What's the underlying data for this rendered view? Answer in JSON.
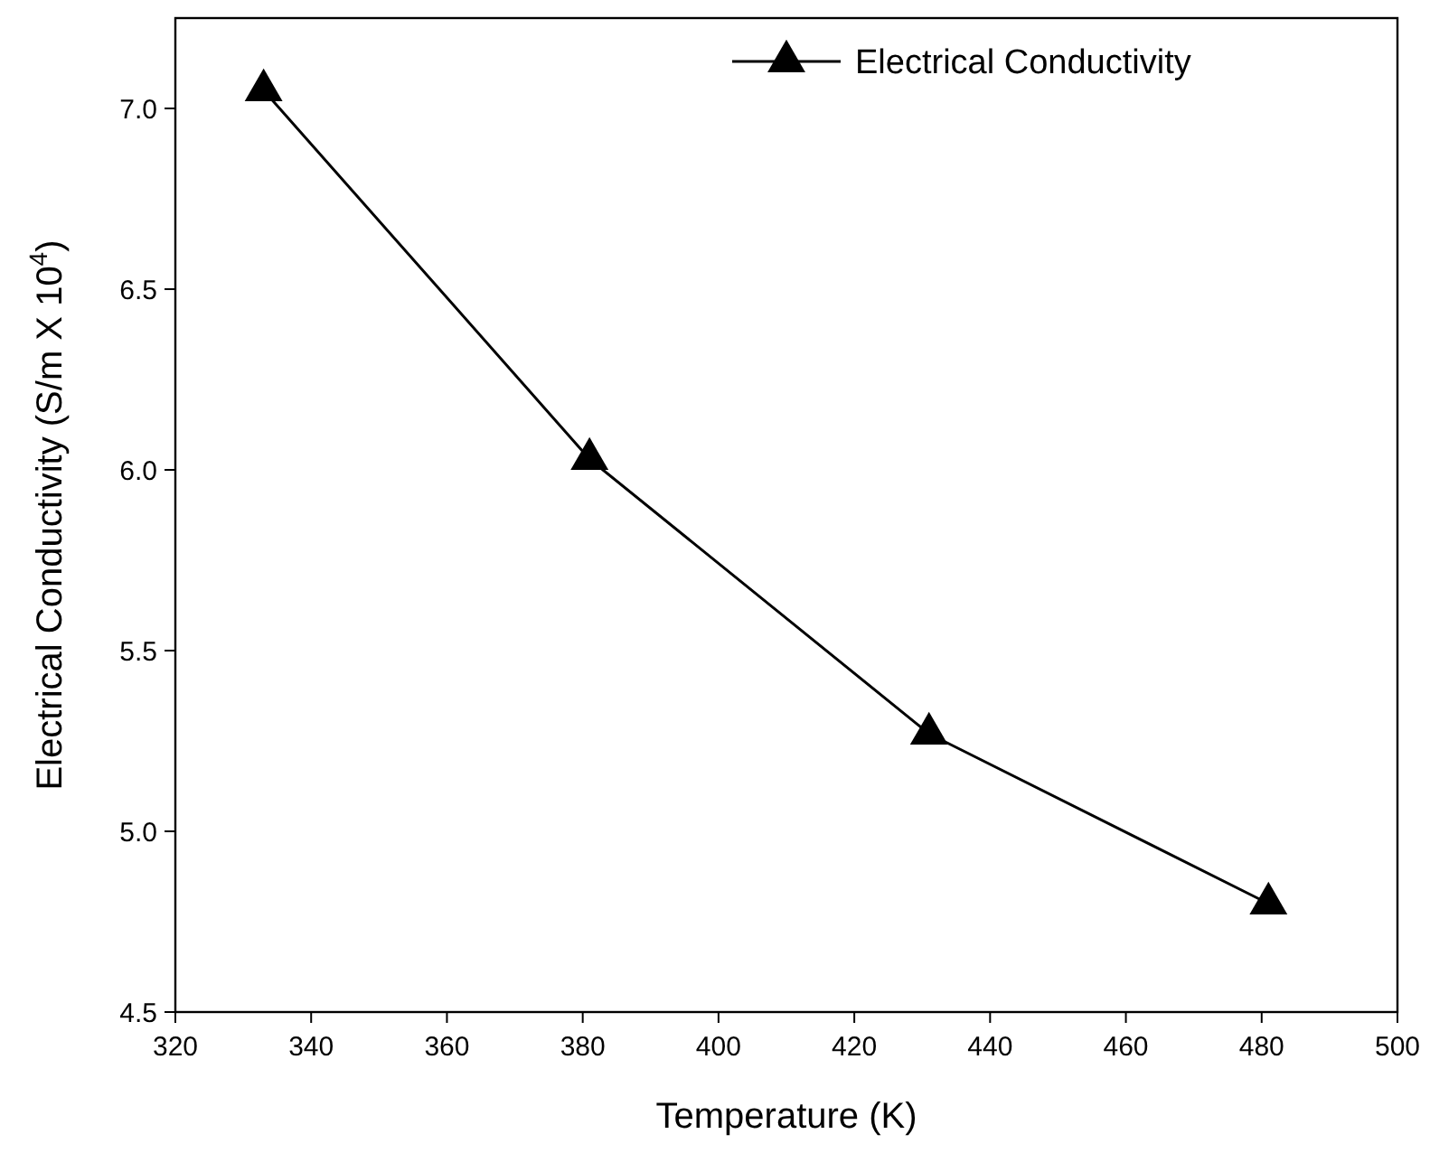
{
  "chart_data": {
    "type": "line",
    "xlabel": "Temperature (K)",
    "ylabel": "Electrical Conductivity (S/m X 10$^{4}$)",
    "x": [
      333,
      381,
      431,
      481
    ],
    "series": [
      {
        "name": "Electrical Conductivity",
        "color": "#000000",
        "values": [
          7.05,
          6.03,
          5.27,
          4.8
        ]
      }
    ],
    "xlim": [
      320,
      500
    ],
    "xticks": [
      320,
      340,
      360,
      380,
      400,
      420,
      440,
      460,
      480,
      500
    ],
    "ylim": [
      4.5,
      7.25
    ],
    "yticks": [
      {
        "value": 4.5,
        "label": "4.5"
      },
      {
        "value": 5,
        "label": "5.0"
      },
      {
        "value": 5.5,
        "label": "5.5"
      },
      {
        "value": 6,
        "label": "6.0"
      },
      {
        "value": 6.5,
        "label": "6.5"
      },
      {
        "value": 7,
        "label": "7.0"
      }
    ],
    "marker": "triangle",
    "line_style": "solid",
    "legend": "top",
    "grid": false
  }
}
